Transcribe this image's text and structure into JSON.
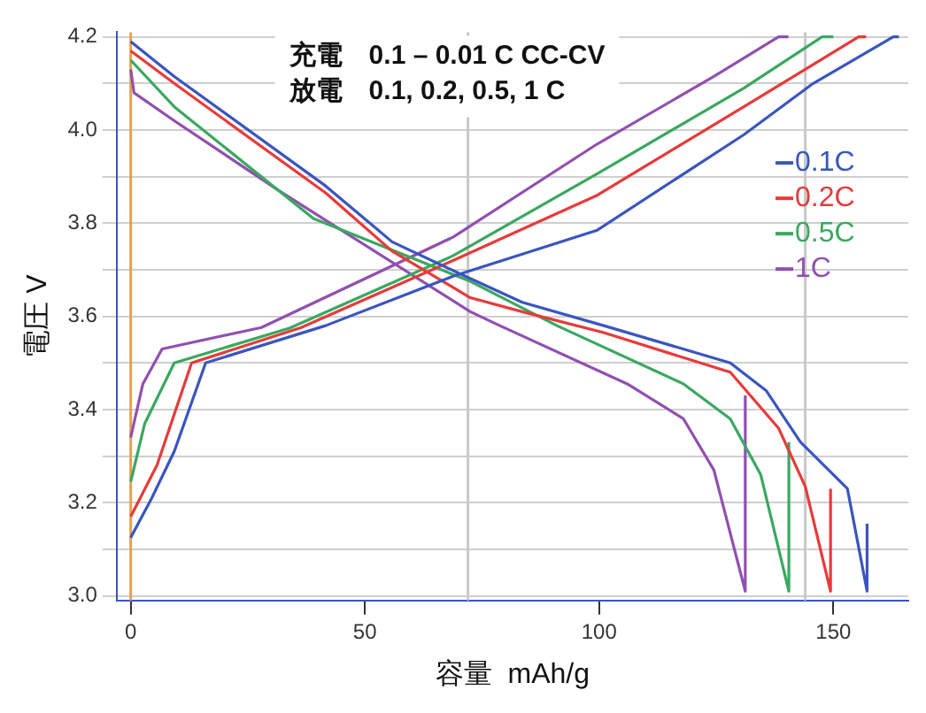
{
  "chart_data": {
    "type": "line",
    "xlabel": "容量  mAh/g",
    "ylabel": "電圧 V",
    "annotations": [
      "充電　0.1 – 0.01 C CC-CV",
      "放電　0.1, 0.2, 0.5, 1 C"
    ],
    "xlim": [
      -3,
      166
    ],
    "xticks": [
      0,
      50,
      100,
      150
    ],
    "ylim": [
      2.99,
      4.21
    ],
    "yticks": [
      {
        "value": 3,
        "label": "3.0"
      },
      {
        "value": 3.1,
        "label": null
      },
      {
        "value": 3.2,
        "label": "3.2"
      },
      {
        "value": 3.3,
        "label": null
      },
      {
        "value": 3.4,
        "label": "3.4"
      },
      {
        "value": 3.5,
        "label": null
      },
      {
        "value": 3.6,
        "label": "3.6"
      },
      {
        "value": 3.7,
        "label": null
      },
      {
        "value": 3.8,
        "label": "3.8"
      },
      {
        "value": 3.9,
        "label": null
      },
      {
        "value": 4,
        "label": "4.0"
      },
      {
        "value": 4.1,
        "label": null
      },
      {
        "value": 4.2,
        "label": "4.2"
      }
    ],
    "grid": "y",
    "legend": "right",
    "marker": "none",
    "line_style": "solid",
    "ref_lines": [
      {
        "axis": "x",
        "value": 0,
        "color": "#e8a050"
      },
      {
        "axis": "x",
        "value": 72,
        "color": "#c8c8c8"
      },
      {
        "axis": "x",
        "value": 144,
        "color": "#c8c8c8"
      }
    ],
    "series": [
      {
        "name": "0.1C",
        "color": "#3a55c0",
        "x": [
          0,
          4.5,
          9.3,
          16,
          41.6,
          68.8,
          99.6,
          130.9,
          145.7,
          162.8,
          164,
          null,
          0,
          9.3,
          41.6,
          55.8,
          70.6,
          83.6,
          101,
          128,
          135.7,
          143,
          153,
          157.2,
          157.2
        ],
        "values": [
          3.125,
          3.21,
          3.31,
          3.5,
          3.58,
          3.686,
          3.785,
          3.99,
          4.1,
          4.2,
          4.2,
          null,
          4.19,
          4.115,
          3.88,
          3.76,
          3.69,
          3.63,
          3.58,
          3.5,
          3.44,
          3.33,
          3.23,
          3.01,
          3.155
        ]
      },
      {
        "name": "0.2C",
        "color": "#e83a3a",
        "x": [
          0,
          5.6,
          13,
          36.4,
          68.8,
          99.6,
          130.9,
          155.4,
          157,
          null,
          0,
          9.3,
          41.6,
          55.8,
          72.5,
          83.6,
          101,
          128,
          138.3,
          144,
          149.4,
          149.4
        ],
        "values": [
          3.17,
          3.28,
          3.5,
          3.576,
          3.72,
          3.86,
          4.05,
          4.2,
          4.2,
          null,
          4.17,
          4.1,
          3.865,
          3.74,
          3.64,
          3.61,
          3.565,
          3.48,
          3.36,
          3.235,
          3.01,
          3.23
        ]
      },
      {
        "name": "0.5C",
        "color": "#3aa860",
        "x": [
          0,
          3,
          9.3,
          34,
          68.8,
          99.6,
          130.9,
          147.6,
          150,
          null,
          0,
          9.3,
          39,
          72.5,
          91,
          118,
          128,
          134.5,
          140.5,
          140.5
        ],
        "values": [
          3.245,
          3.37,
          3.5,
          3.575,
          3.73,
          3.906,
          4.09,
          4.2,
          4.2,
          null,
          4.15,
          4.05,
          3.81,
          3.675,
          3.58,
          3.455,
          3.38,
          3.26,
          3.01,
          3.33
        ]
      },
      {
        "name": "1C",
        "color": "#9050b0",
        "x": [
          0,
          2.6,
          6.7,
          27.9,
          68.8,
          99.6,
          124.5,
          138.3,
          140.4,
          null,
          0,
          0.7,
          9.3,
          31.6,
          72.5,
          78.8,
          106,
          118,
          124.5,
          131.2,
          131.2
        ],
        "values": [
          3.34,
          3.455,
          3.53,
          3.576,
          3.77,
          3.97,
          4.115,
          4.2,
          4.2,
          null,
          4.13,
          4.08,
          4.02,
          3.87,
          3.61,
          3.58,
          3.455,
          3.38,
          3.27,
          3.01,
          3.43
        ]
      }
    ]
  }
}
